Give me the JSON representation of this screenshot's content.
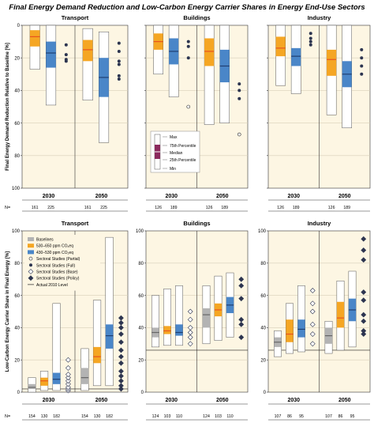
{
  "figure_title": "Final Energy Demand Reduction and Low-Carbon Energy Carrier Shares in Energy End-Use Sectors",
  "colors": {
    "background": "#fdf6e3",
    "baselines": "#b3b3b3",
    "scen530": "#f5a623",
    "scen430": "#4a86c8",
    "max_min_box": "#ffffff",
    "percentile_box": "#8b2a5e",
    "median_baselines": "#666666",
    "median_530": "#e8541e",
    "median_430": "#1f3f73",
    "sectoral_marker": "#2d3550"
  },
  "legend_scenarios": {
    "items": [
      "Baselines",
      "530–650 ppm CO₂eq",
      "430–530 ppm CO₂eq",
      "Sectoral Studies (Partial)",
      "Sectoral Studies (Full)",
      "Sectoral Studies (Base)",
      "Sectoral Studies (Policy)",
      "Actual 2010 Level"
    ]
  },
  "legend_stats": {
    "items": [
      "Max",
      "75th Percentile",
      "Median",
      "25th Percentile",
      "Min"
    ]
  },
  "chart_data": [
    {
      "type": "box",
      "panel": "top-left",
      "title": "Transport",
      "ylabel": "Final Energy Demand Reduction Relative to Baseline [%]",
      "ylim": [
        0,
        100
      ],
      "y_inverted": true,
      "yticks": [
        0,
        20,
        40,
        60,
        80,
        100
      ],
      "show_yticklabels": true,
      "n_label": "N=",
      "groups": [
        {
          "label": "2030",
          "n": [
            "161",
            "225"
          ],
          "boxes": [
            {
              "series": "530–650 ppm CO₂eq",
              "min": 0,
              "q1": 3,
              "median": 7,
              "q3": 13,
              "max": 27
            },
            {
              "series": "430–530 ppm CO₂eq",
              "min": 0,
              "q1": 10,
              "median": 17,
              "q3": 26,
              "max": 49
            }
          ]
        },
        {
          "label": "2050",
          "n": [
            "161",
            "225"
          ],
          "boxes": [
            {
              "series": "530–650 ppm CO₂eq",
              "min": 2,
              "q1": 9,
              "median": 15,
              "q3": 22,
              "max": 46
            },
            {
              "series": "430–530 ppm CO₂eq",
              "min": 4,
              "q1": 20,
              "median": 32,
              "q3": 44,
              "max": 72
            }
          ]
        }
      ],
      "markers": [
        {
          "group": "2030",
          "type": "full",
          "values": [
            12,
            18,
            21,
            22
          ]
        },
        {
          "group": "2050",
          "type": "full",
          "values": [
            11,
            16,
            22,
            24,
            31,
            33
          ]
        }
      ]
    },
    {
      "type": "box",
      "panel": "top-middle",
      "title": "Buildings",
      "ylim": [
        0,
        100
      ],
      "y_inverted": true,
      "yticks": [
        0,
        20,
        40,
        60,
        80,
        100
      ],
      "show_yticklabels": false,
      "groups": [
        {
          "label": "2030",
          "n": [
            "126",
            "189"
          ],
          "boxes": [
            {
              "series": "530–650 ppm CO₂eq",
              "min": 0,
              "q1": 5,
              "median": 10,
              "q3": 15,
              "max": 30
            },
            {
              "series": "430–530 ppm CO₂eq",
              "min": 0,
              "q1": 8,
              "median": 16,
              "q3": 24,
              "max": 44
            }
          ]
        },
        {
          "label": "2050",
          "n": [
            "126",
            "189"
          ],
          "boxes": [
            {
              "series": "530–650 ppm CO₂eq",
              "min": 0,
              "q1": 8,
              "median": 16,
              "q3": 25,
              "max": 61
            },
            {
              "series": "430–530 ppm CO₂eq",
              "min": 0,
              "q1": 15,
              "median": 25,
              "q3": 35,
              "max": 60
            }
          ]
        }
      ],
      "markers": [
        {
          "group": "2030",
          "type": "full",
          "values": [
            10,
            13,
            20
          ]
        },
        {
          "group": "2030",
          "type": "partial",
          "values": [
            50
          ]
        },
        {
          "group": "2050",
          "type": "full",
          "values": [
            36,
            40,
            45
          ]
        },
        {
          "group": "2050",
          "type": "partial",
          "values": [
            67
          ]
        }
      ]
    },
    {
      "type": "box",
      "panel": "top-right",
      "title": "Industry",
      "ylim": [
        0,
        100
      ],
      "y_inverted": true,
      "yticks": [
        0,
        20,
        40,
        60,
        80,
        100
      ],
      "show_yticklabels": false,
      "groups": [
        {
          "label": "2030",
          "n": [
            "126",
            "189"
          ],
          "boxes": [
            {
              "series": "530–650 ppm CO₂eq",
              "min": 0,
              "q1": 7,
              "median": 14,
              "q3": 19,
              "max": 37
            },
            {
              "series": "430–530 ppm CO₂eq",
              "min": 0,
              "q1": 14,
              "median": 19,
              "q3": 25,
              "max": 42
            }
          ]
        },
        {
          "label": "2050",
          "n": [
            "126",
            "189"
          ],
          "boxes": [
            {
              "series": "530–650 ppm CO₂eq",
              "min": 0,
              "q1": 15,
              "median": 21,
              "q3": 31,
              "max": 55
            },
            {
              "series": "430–530 ppm CO₂eq",
              "min": 0,
              "q1": 22,
              "median": 30,
              "q3": 38,
              "max": 63
            }
          ]
        }
      ],
      "markers": [
        {
          "group": "2030",
          "type": "full",
          "values": [
            5,
            8,
            10,
            12
          ]
        },
        {
          "group": "2050",
          "type": "full",
          "values": [
            15,
            20,
            25,
            30
          ]
        }
      ]
    },
    {
      "type": "box",
      "panel": "bottom-left",
      "title": "Transport",
      "ylabel": "Low-Carbon Energy Carrier Share in Final Energy [%]",
      "ylim": [
        0,
        100
      ],
      "yticks": [
        0,
        20,
        40,
        60,
        80,
        100
      ],
      "show_yticklabels": true,
      "n_label": "N=",
      "groups": [
        {
          "label": "2030",
          "n": [
            "154",
            "130",
            "182"
          ],
          "actual_2010": 2,
          "boxes": [
            {
              "series": "Baselines",
              "min": 0,
              "q1": 2,
              "median": 3,
              "q3": 5,
              "max": 9
            },
            {
              "series": "530–650 ppm CO₂eq",
              "min": 1,
              "q1": 4,
              "median": 7,
              "q3": 9,
              "max": 13
            },
            {
              "series": "430–530 ppm CO₂eq",
              "min": 1,
              "q1": 5,
              "median": 8,
              "q3": 12,
              "max": 55
            }
          ]
        },
        {
          "label": "2050",
          "n": [
            "154",
            "130",
            "182"
          ],
          "actual_2010": 2,
          "boxes": [
            {
              "series": "Baselines",
              "min": 1,
              "q1": 5,
              "median": 9,
              "q3": 15,
              "max": 27
            },
            {
              "series": "530–650 ppm CO₂eq",
              "min": 4,
              "q1": 18,
              "median": 22,
              "q3": 28,
              "max": 57
            },
            {
              "series": "430–530 ppm CO₂eq",
              "min": 4,
              "q1": 27,
              "median": 35,
              "q3": 42,
              "max": 96
            }
          ]
        }
      ],
      "markers": [
        {
          "group": "2030",
          "type": "base",
          "values": [
            1,
            2,
            3,
            5,
            7,
            9,
            11,
            15,
            20
          ]
        },
        {
          "group": "2050",
          "type": "policy",
          "values": [
            2,
            4,
            7,
            10,
            13,
            18,
            22,
            26,
            31,
            36,
            40,
            43,
            46
          ]
        }
      ]
    },
    {
      "type": "box",
      "panel": "bottom-middle",
      "title": "Buildings",
      "ylim": [
        0,
        100
      ],
      "yticks": [
        0,
        20,
        40,
        60,
        80,
        100
      ],
      "show_yticklabels": true,
      "n_label": "",
      "groups": [
        {
          "label": "2030",
          "n": [
            "124",
            "103",
            "110"
          ],
          "actual_2010": 26,
          "boxes": [
            {
              "series": "Baselines",
              "min": 28,
              "q1": 34,
              "median": 37,
              "q3": 40,
              "max": 60
            },
            {
              "series": "530–650 ppm CO₂eq",
              "min": 29,
              "q1": 36,
              "median": 38,
              "q3": 41,
              "max": 64
            },
            {
              "series": "430–530 ppm CO₂eq",
              "min": 29,
              "q1": 35,
              "median": 37,
              "q3": 42,
              "max": 66
            }
          ]
        },
        {
          "label": "2050",
          "n": [
            "124",
            "103",
            "110"
          ],
          "actual_2010": 26,
          "boxes": [
            {
              "series": "Baselines",
              "min": 30,
              "q1": 40,
              "median": 48,
              "q3": 52,
              "max": 66
            },
            {
              "series": "530–650 ppm CO₂eq",
              "min": 32,
              "q1": 47,
              "median": 51,
              "q3": 55,
              "max": 72
            },
            {
              "series": "430–530 ppm CO₂eq",
              "min": 34,
              "q1": 49,
              "median": 54,
              "q3": 59,
              "max": 74
            }
          ]
        }
      ],
      "markers": [
        {
          "group": "2030",
          "type": "base",
          "values": [
            30,
            34,
            37,
            40,
            45,
            50
          ]
        },
        {
          "group": "2050",
          "type": "policy",
          "values": [
            34,
            42,
            45,
            58,
            66,
            70
          ]
        }
      ]
    },
    {
      "type": "box",
      "panel": "bottom-right",
      "title": "Industry",
      "ylim": [
        0,
        100
      ],
      "yticks": [
        0,
        20,
        40,
        60,
        80,
        100
      ],
      "show_yticklabels": true,
      "n_label": "",
      "groups": [
        {
          "label": "2030",
          "n": [
            "107",
            "86",
            "95"
          ],
          "actual_2010": 26,
          "boxes": [
            {
              "series": "Baselines",
              "min": 22,
              "q1": 28,
              "median": 31,
              "q3": 34,
              "max": 38
            },
            {
              "series": "530–650 ppm CO₂eq",
              "min": 24,
              "q1": 31,
              "median": 36,
              "q3": 45,
              "max": 55
            },
            {
              "series": "430–530 ppm CO₂eq",
              "min": 25,
              "q1": 34,
              "median": 39,
              "q3": 45,
              "max": 66
            }
          ]
        },
        {
          "label": "2050",
          "n": [
            "107",
            "86",
            "95"
          ],
          "actual_2010": 26,
          "boxes": [
            {
              "series": "Baselines",
              "min": 24,
              "q1": 30,
              "median": 35,
              "q3": 40,
              "max": 44
            },
            {
              "series": "530–650 ppm CO₂eq",
              "min": 26,
              "q1": 40,
              "median": 46,
              "q3": 56,
              "max": 69
            },
            {
              "series": "430–530 ppm CO₂eq",
              "min": 28,
              "q1": 44,
              "median": 51,
              "q3": 58,
              "max": 75
            }
          ]
        }
      ],
      "markers": [
        {
          "group": "2030",
          "type": "base",
          "values": [
            30,
            36,
            42,
            50,
            55,
            63
          ]
        },
        {
          "group": "2050",
          "type": "policy",
          "values": [
            36,
            38,
            44,
            48,
            57,
            62,
            82,
            88,
            95
          ]
        }
      ]
    }
  ]
}
